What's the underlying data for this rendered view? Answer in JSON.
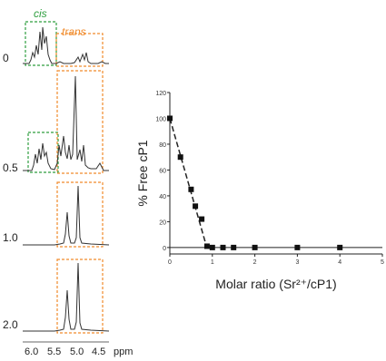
{
  "nmr": {
    "cis_label": "cis",
    "trans_label": "trans",
    "ratios": [
      "0",
      "0.5",
      "1.0",
      "2.0"
    ],
    "x_ticks": [
      "6.0",
      "5.5",
      "5.0",
      "4.5"
    ],
    "x_unit": "ppm",
    "colors": {
      "cis": "#2e9e3f",
      "trans": "#f08a2a",
      "trace": "#333333"
    }
  },
  "chart_data": {
    "type": "scatter",
    "title": "",
    "xlabel": "Molar ratio (Sr²⁺/cP1)",
    "ylabel": "% Free cP1",
    "xlim": [
      0,
      5
    ],
    "ylim": [
      -5,
      120
    ],
    "x_ticks": [
      "0",
      "1",
      "2",
      "3",
      "4",
      "5"
    ],
    "y_ticks": [
      "0",
      "20",
      "40",
      "60",
      "80",
      "100",
      "120"
    ],
    "series": [
      {
        "marker": "square",
        "line": "dashed",
        "x": [
          0,
          0.25,
          0.5,
          0.6,
          0.75,
          0.875,
          1.0,
          1.25,
          1.5,
          2.0,
          3.0,
          4.0
        ],
        "y": [
          100,
          70,
          45,
          32,
          22,
          1,
          0,
          0,
          0,
          0,
          0,
          0
        ]
      }
    ],
    "fit_line": {
      "x": [
        0,
        0.87
      ],
      "y": [
        100,
        0
      ]
    },
    "grid": false,
    "baseline_y": 0
  }
}
